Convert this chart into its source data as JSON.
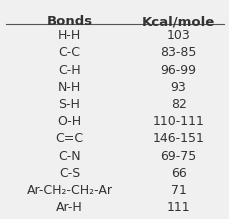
{
  "title_bonds": "Bonds",
  "title_kcal": "Kcal/mole",
  "rows": [
    [
      "H-H",
      "103"
    ],
    [
      "C-C",
      "83-85"
    ],
    [
      "C-H",
      "96-99"
    ],
    [
      "N-H",
      "93"
    ],
    [
      "S-H",
      "82"
    ],
    [
      "O-H",
      "110-111"
    ],
    [
      "C=C",
      "146-151"
    ],
    [
      "C-N",
      "69-75"
    ],
    [
      "C-S",
      "66"
    ],
    [
      "Ar-CH₂-CH₂-Ar",
      "71"
    ],
    [
      "Ar-H",
      "111"
    ]
  ],
  "bg_color": "#f0f0f0",
  "header_line_color": "#555555",
  "text_color": "#333333",
  "header_fontsize": 9.5,
  "row_fontsize": 9.0
}
